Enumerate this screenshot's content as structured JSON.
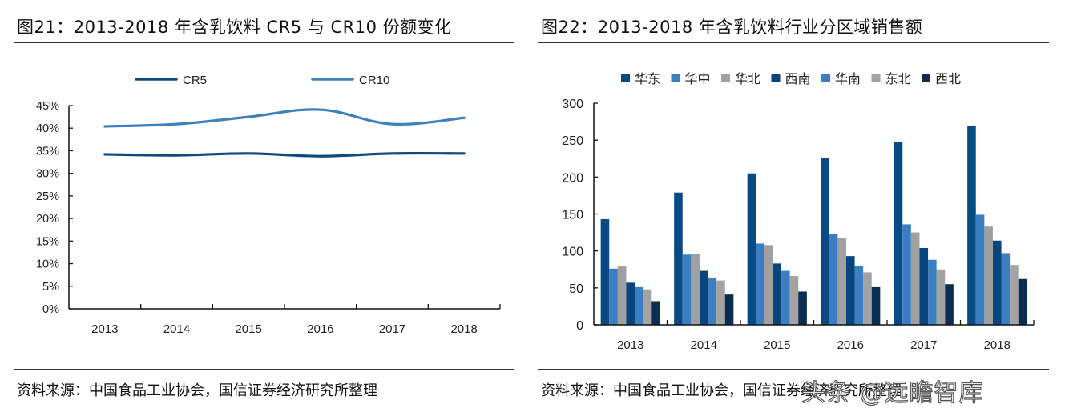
{
  "left": {
    "title": "图21：2013-2018 年含乳饮料 CR5 与 CR10 份额变化",
    "source": "资料来源：中国食品工业协会，国信证券经济研究所整理"
  },
  "right": {
    "title": "图22：2013-2018 年含乳饮料行业分区域销售额",
    "source": "资料来源：中国食品工业协会，国信证券经济研究所整理",
    "watermark": "头条 @远瞻智库"
  },
  "chart_data": [
    {
      "type": "line",
      "title": "2013-2018 年含乳饮料 CR5 与 CR10 份额变化",
      "xlabel": "",
      "ylabel": "",
      "categories": [
        "2013",
        "2014",
        "2015",
        "2016",
        "2017",
        "2018"
      ],
      "ylim": [
        0,
        45
      ],
      "yticks": [
        0,
        5,
        10,
        15,
        20,
        25,
        30,
        35,
        40,
        45
      ],
      "ytick_labels": [
        "0%",
        "5%",
        "10%",
        "15%",
        "20%",
        "25%",
        "30%",
        "35%",
        "40%",
        "45%"
      ],
      "grid": false,
      "smooth": true,
      "legend": "top-center",
      "series": [
        {
          "name": "CR5",
          "color": "#0e4a80",
          "values": [
            34.2,
            34.0,
            34.4,
            33.8,
            34.4,
            34.4
          ]
        },
        {
          "name": "CR10",
          "color": "#3d80bf",
          "values": [
            40.4,
            40.9,
            42.5,
            44.1,
            40.9,
            42.3
          ]
        }
      ]
    },
    {
      "type": "bar",
      "title": "2013-2018 年含乳饮料行业分区域销售额",
      "xlabel": "",
      "ylabel": "",
      "categories": [
        "2013",
        "2014",
        "2015",
        "2016",
        "2017",
        "2018"
      ],
      "ylim": [
        0,
        300
      ],
      "yticks": [
        0,
        50,
        100,
        150,
        200,
        250,
        300
      ],
      "grid": false,
      "legend": "top-center",
      "series": [
        {
          "name": "华东",
          "color": "#0a4a84",
          "values": [
            143,
            179,
            205,
            226,
            248,
            269
          ]
        },
        {
          "name": "华中",
          "color": "#3b7dc2",
          "values": [
            76,
            95,
            110,
            123,
            136,
            149
          ]
        },
        {
          "name": "华北",
          "color": "#a0a0a0",
          "values": [
            79,
            96,
            108,
            117,
            125,
            133
          ]
        },
        {
          "name": "西南",
          "color": "#08457d",
          "values": [
            57,
            73,
            83,
            93,
            104,
            114
          ]
        },
        {
          "name": "华南",
          "color": "#3c7fc0",
          "values": [
            51,
            64,
            73,
            80,
            88,
            97
          ]
        },
        {
          "name": "东北",
          "color": "#a3a3a3",
          "values": [
            48,
            60,
            66,
            71,
            75,
            81
          ]
        },
        {
          "name": "西北",
          "color": "#0b2d50",
          "values": [
            32,
            41,
            45,
            51,
            55,
            62
          ]
        }
      ]
    }
  ]
}
